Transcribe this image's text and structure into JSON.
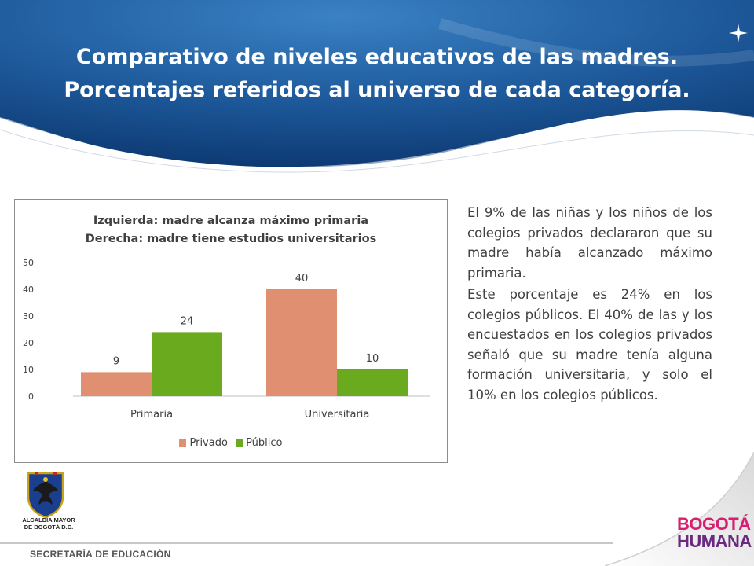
{
  "slide": {
    "title_line1": "Comparativo de niveles educativos de las madres.",
    "title_line2": "Porcentajes referidos al universo de cada categoría."
  },
  "colors": {
    "header_dark": "#0f3f7a",
    "header_light": "#2d75bb",
    "privado": "#e09070",
    "publico": "#6aaa1e",
    "text": "#404040"
  },
  "chart_data": {
    "type": "bar",
    "title": "Izquierda: madre alcanza máximo primaria\nDerecha: madre tiene estudios universitarios",
    "title_line1": "Izquierda: madre alcanza máximo primaria",
    "title_line2": "Derecha: madre tiene estudios universitarios",
    "categories": [
      "Primaria",
      "Universitaria"
    ],
    "series": [
      {
        "name": "Privado",
        "values": [
          9,
          40
        ],
        "color": "#e09070"
      },
      {
        "name": "Público",
        "values": [
          24,
          10
        ],
        "color": "#6aaa1e"
      }
    ],
    "ylim": [
      0,
      50
    ],
    "yticks": [
      0,
      10,
      20,
      30,
      40,
      50
    ],
    "xlabel": "",
    "ylabel": "",
    "grid": false,
    "legend": "bottom",
    "data_labels": true
  },
  "side_text": {
    "paragraph1": "El 9% de las niñas y los niños de los colegios privados declararon que su madre había alcanzado máximo primaria.",
    "paragraph2": "Este porcentaje es 24% en los colegios públicos. El 40% de las y los encuestados en los colegios privados señaló que su madre tenía alguna formación universitaria, y solo el 10% en los colegios públicos."
  },
  "footer": {
    "alcaldia_line1": "ALCALDÍA MAYOR",
    "alcaldia_line2": "DE BOGOTÁ D.C.",
    "secretaria": "SECRETARÍA DE EDUCACIÓN",
    "logo_line1": "BOGOTÁ",
    "logo_line2": "HUMANA"
  },
  "icons": {
    "header_bullet": "star-icon",
    "crest": "coat-of-arms-icon"
  }
}
